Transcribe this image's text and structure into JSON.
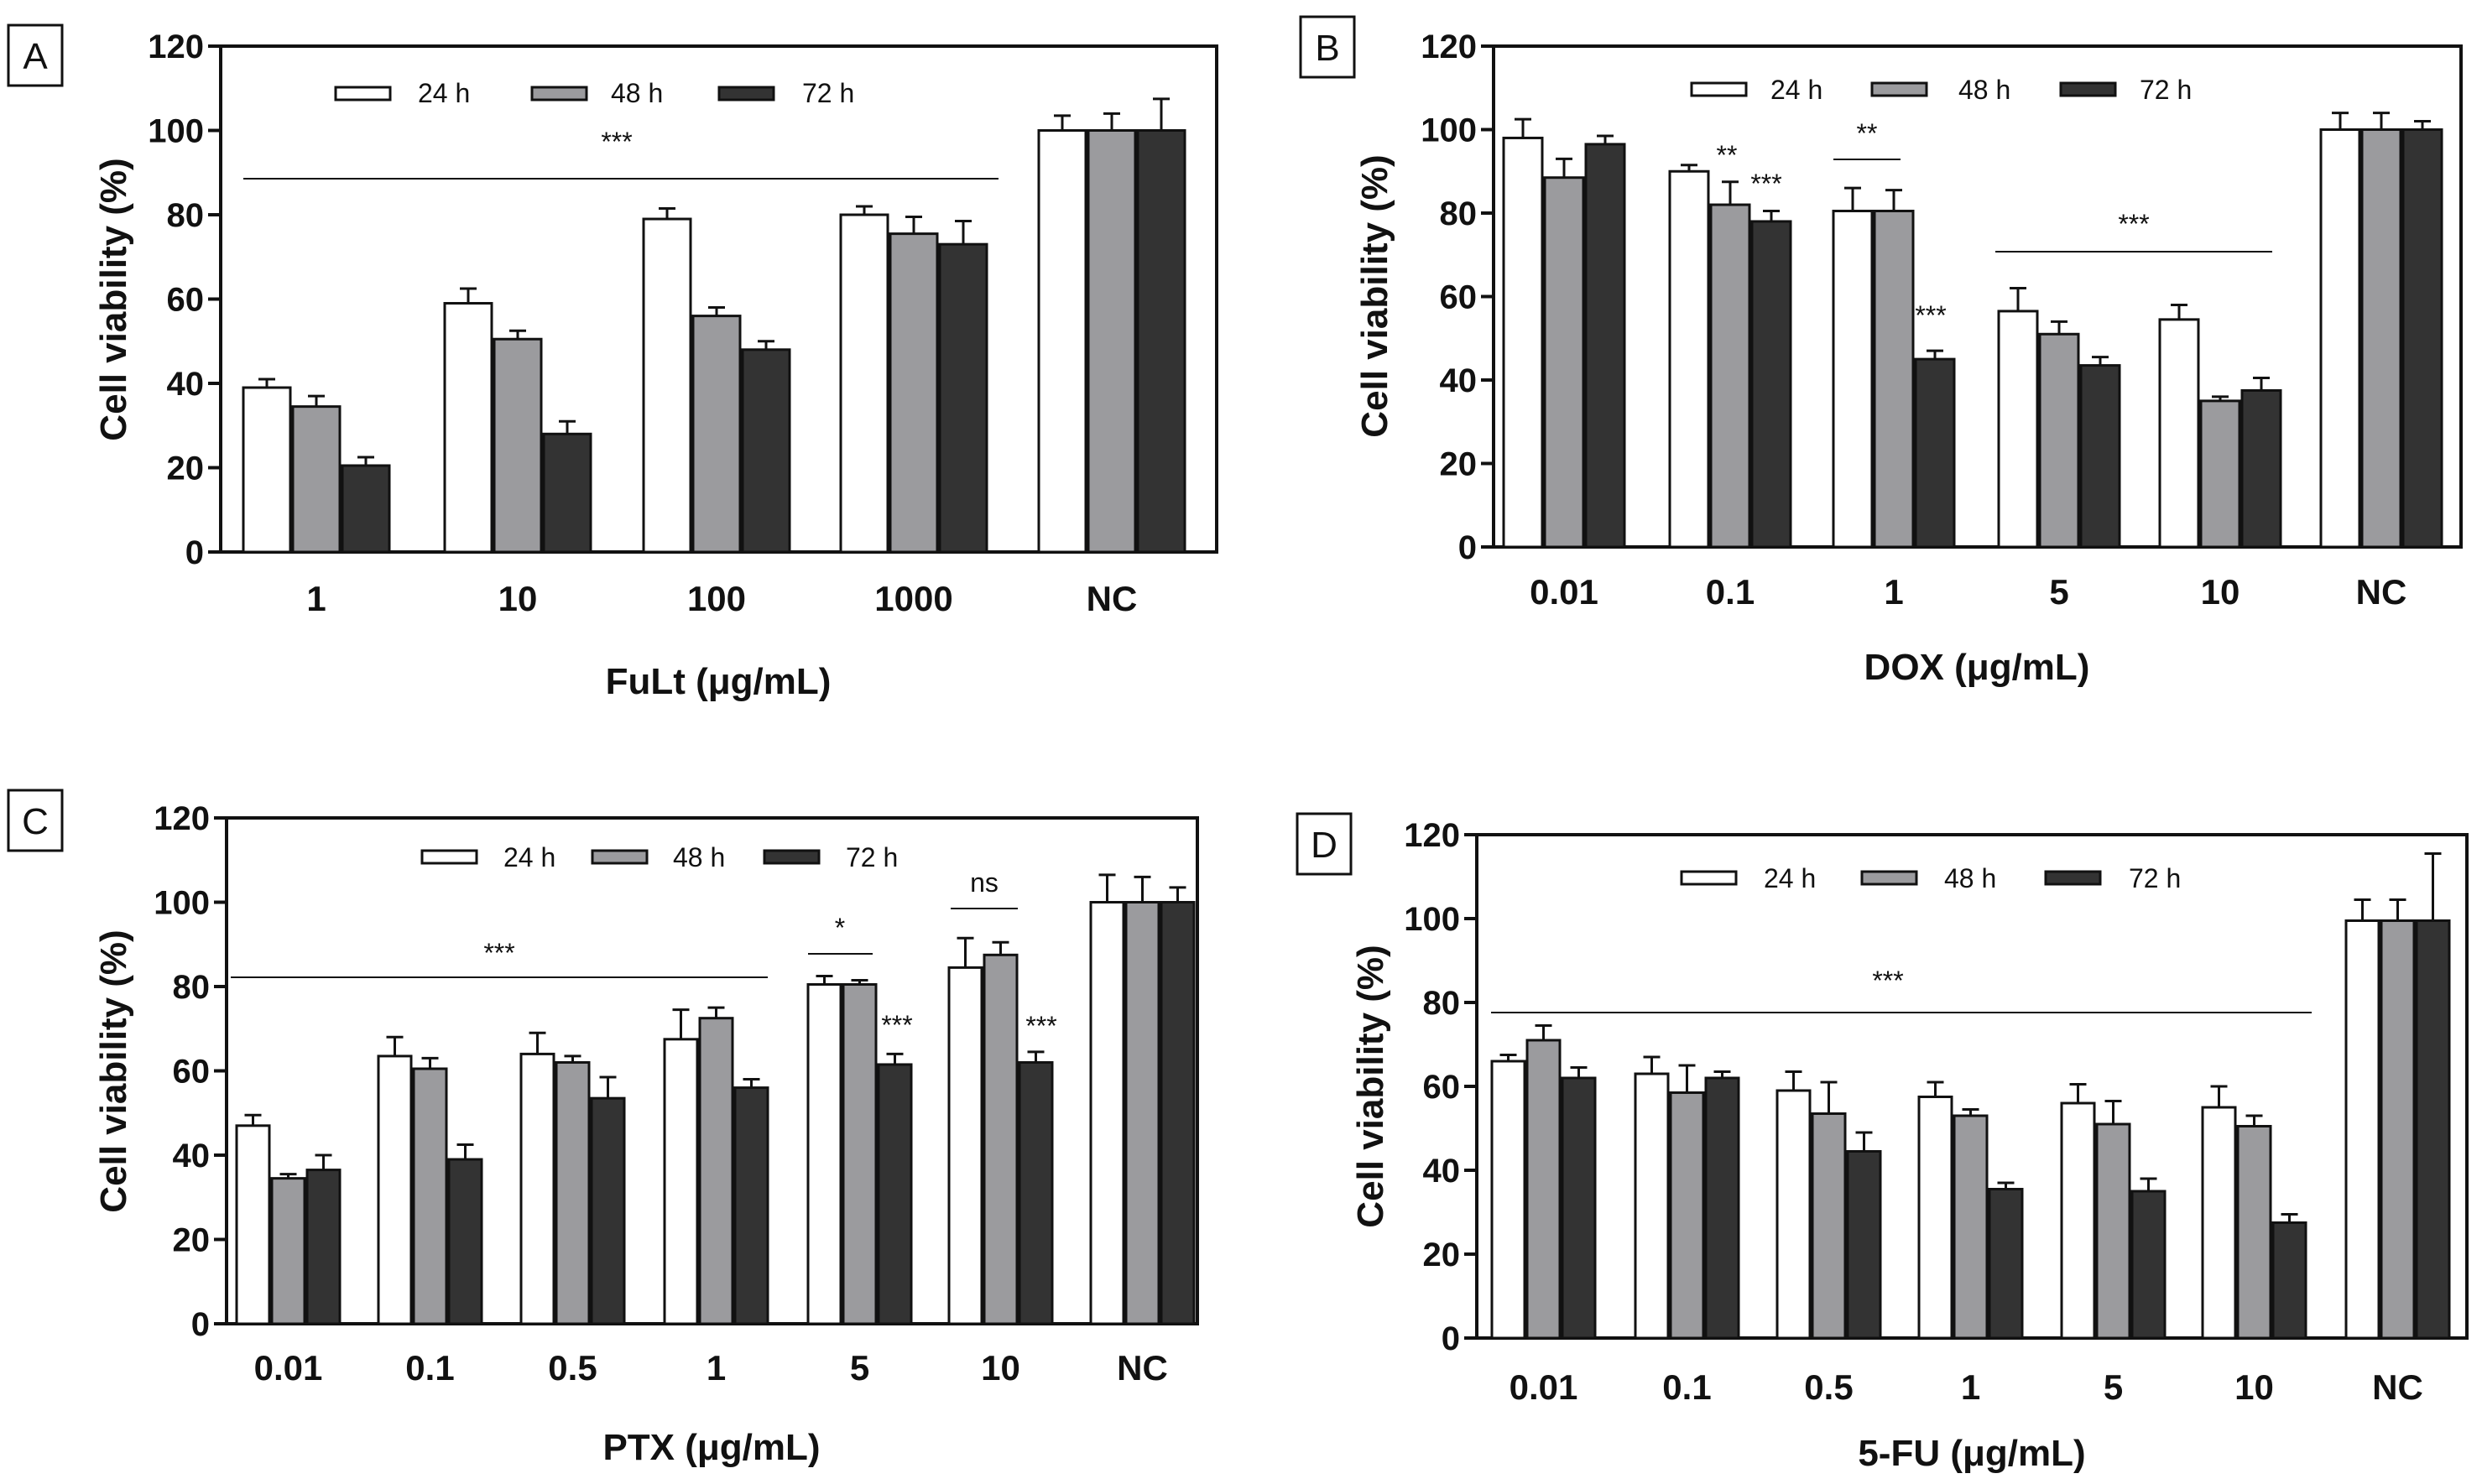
{
  "colors": {
    "h24": "#ffffff",
    "h48": "#9b9b9e",
    "h72": "#333333",
    "stroke": "#111111"
  },
  "chart_data": [
    {
      "panel": "A",
      "type": "bar",
      "categories": [
        "1",
        "10",
        "100",
        "1000",
        "NC"
      ],
      "series": [
        {
          "name": "24 h",
          "values": [
            39,
            59,
            79,
            80,
            100
          ],
          "errors": [
            2,
            3.5,
            2.5,
            2,
            3.5
          ]
        },
        {
          "name": "48 h",
          "values": [
            34.5,
            50.5,
            56,
            75.5,
            100
          ],
          "errors": [
            2.5,
            2,
            2,
            4,
            4
          ]
        },
        {
          "name": "72 h",
          "values": [
            20.5,
            28,
            48,
            73,
            100
          ],
          "errors": [
            2,
            3,
            2,
            5.5,
            7.5
          ]
        }
      ],
      "xlabel": "FuLt (μg/mL)",
      "ylabel": "Cell viability (%)",
      "ylim": [
        0,
        120
      ],
      "yticks": [
        "0",
        "20",
        "40",
        "60",
        "80",
        "100",
        "120"
      ],
      "annotations": [
        "***"
      ]
    },
    {
      "panel": "B",
      "type": "bar",
      "categories": [
        "0.01",
        "0.1",
        "1",
        "5",
        "10",
        "NC"
      ],
      "series": [
        {
          "name": "24 h",
          "values": [
            98,
            90,
            80.5,
            56.5,
            54.5,
            100
          ],
          "errors": [
            4.5,
            1.5,
            5.5,
            5.5,
            3.5,
            4
          ]
        },
        {
          "name": "48 h",
          "values": [
            88.5,
            82,
            80.5,
            51,
            35,
            100
          ],
          "errors": [
            4.5,
            5.5,
            5,
            3,
            1,
            4
          ]
        },
        {
          "name": "72 h",
          "values": [
            96.5,
            78,
            45,
            43.5,
            37.5,
            100
          ],
          "errors": [
            2,
            2.5,
            2,
            2,
            3,
            2
          ]
        }
      ],
      "xlabel": "DOX (μg/mL)",
      "ylabel": "Cell viability (%)",
      "ylim": [
        0,
        120
      ],
      "yticks": [
        "0",
        "20",
        "40",
        "60",
        "80",
        "100",
        "120"
      ],
      "annotations": [
        "**",
        "***",
        "**",
        "***",
        "***"
      ]
    },
    {
      "panel": "C",
      "type": "bar",
      "categories": [
        "0.01",
        "0.1",
        "0.5",
        "1",
        "5",
        "10",
        "NC"
      ],
      "series": [
        {
          "name": "24 h",
          "values": [
            47,
            63.5,
            64,
            67.5,
            80.5,
            84.5,
            100
          ],
          "errors": [
            2.5,
            4.5,
            5,
            7,
            2,
            7,
            6.5
          ]
        },
        {
          "name": "48 h",
          "values": [
            34.5,
            60.5,
            62,
            72.5,
            80.5,
            87.5,
            100
          ],
          "errors": [
            1,
            2.5,
            1.5,
            2.5,
            1,
            3,
            6
          ]
        },
        {
          "name": "72 h",
          "values": [
            36.5,
            39,
            53.5,
            56,
            61.5,
            62,
            100
          ],
          "errors": [
            3.5,
            3.5,
            5,
            2,
            2.5,
            2.5,
            3.5
          ]
        }
      ],
      "xlabel": "PTX (μg/mL)",
      "ylabel": "Cell viability (%)",
      "ylim": [
        0,
        120
      ],
      "yticks": [
        "0",
        "20",
        "40",
        "60",
        "80",
        "100",
        "120"
      ],
      "annotations": [
        "***",
        "*",
        "***",
        "ns",
        "***"
      ]
    },
    {
      "panel": "D",
      "type": "bar",
      "categories": [
        "0.01",
        "0.1",
        "0.5",
        "1",
        "5",
        "10",
        "NC"
      ],
      "series": [
        {
          "name": "24 h",
          "values": [
            66,
            63,
            59,
            57.5,
            56,
            55,
            99.5
          ],
          "errors": [
            1.5,
            4,
            4.5,
            3.5,
            4.5,
            5,
            5
          ]
        },
        {
          "name": "48 h",
          "values": [
            71,
            58.5,
            53.5,
            53,
            51,
            50.5,
            99.5
          ],
          "errors": [
            3.5,
            6.5,
            7.5,
            1.5,
            5.5,
            2.5,
            5
          ]
        },
        {
          "name": "72 h",
          "values": [
            62,
            62,
            44.5,
            35.5,
            35,
            27.5,
            99.5
          ],
          "errors": [
            2.5,
            1.5,
            4.5,
            1.5,
            3,
            2,
            16
          ]
        }
      ],
      "xlabel": "5-FU (μg/mL)",
      "ylabel": "Cell viability (%)",
      "ylim": [
        0,
        120
      ],
      "yticks": [
        "0",
        "20",
        "40",
        "60",
        "80",
        "100",
        "120"
      ],
      "annotations": [
        "***"
      ]
    }
  ]
}
